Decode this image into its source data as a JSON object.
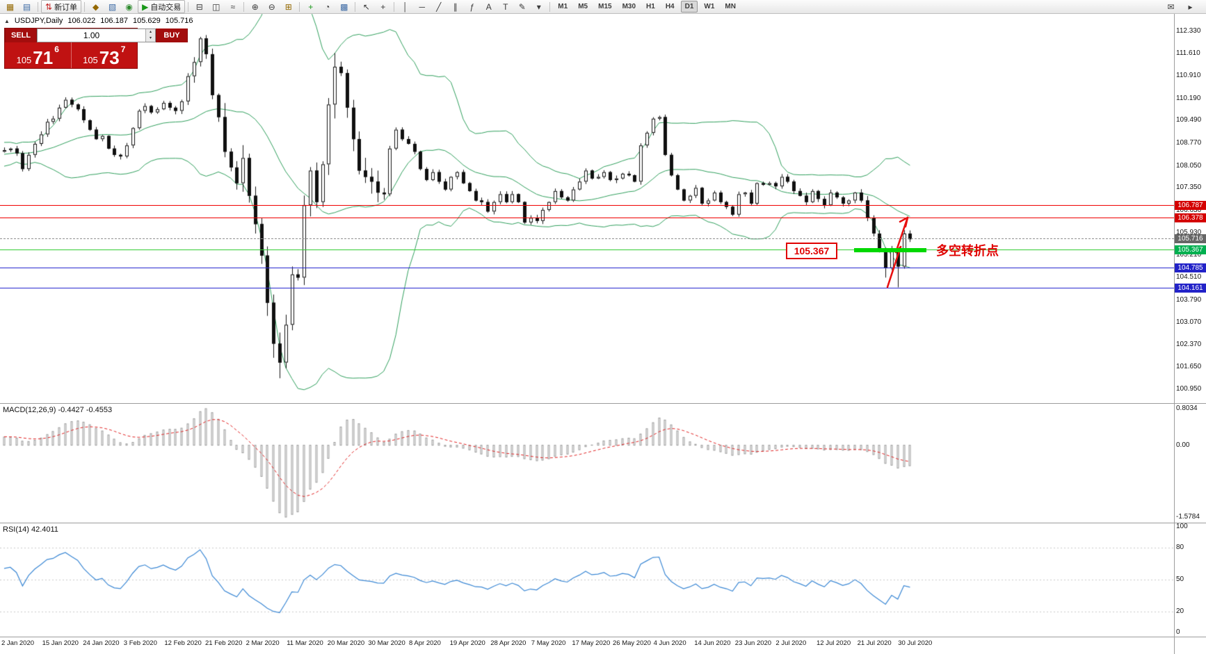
{
  "toolbar": {
    "items": [
      {
        "name": "new-chart-icon",
        "glyph": "▦",
        "color": "#946800"
      },
      {
        "name": "chart-profiles-icon",
        "glyph": "▤",
        "color": "#3f6ca6"
      },
      {
        "sep": true
      },
      {
        "name": "new-order-button",
        "label": "新订单",
        "glyph": "⇅",
        "color": "#c22020",
        "icon_name": "new-order-icon"
      },
      {
        "sep": true
      },
      {
        "name": "expert-advisors-icon",
        "glyph": "◆",
        "color": "#946800"
      },
      {
        "name": "chart-window-icon",
        "glyph": "▧",
        "color": "#3f6ca6"
      },
      {
        "name": "market-watch-icon",
        "glyph": "◉",
        "color": "#2e8b2e"
      },
      {
        "name": "autotrading-button",
        "label": "自动交易",
        "glyph": "▶",
        "color": "#189818",
        "icon_name": "autotrading-icon"
      },
      {
        "sep": true
      },
      {
        "name": "bar-chart-icon",
        "glyph": "⊟"
      },
      {
        "name": "candlestick-chart-icon",
        "glyph": "◫"
      },
      {
        "name": "line-chart-icon",
        "glyph": "≈"
      },
      {
        "sep": true
      },
      {
        "name": "zoom-in-icon",
        "glyph": "⊕"
      },
      {
        "name": "zoom-out-icon",
        "glyph": "⊖"
      },
      {
        "name": "tile-windows-icon",
        "glyph": "⊞",
        "color": "#946800"
      },
      {
        "sep": true
      },
      {
        "name": "indicators-icon",
        "glyph": "+",
        "color": "#189818"
      },
      {
        "name": "periods-icon",
        "glyph": "◔"
      },
      {
        "name": "templates-icon",
        "glyph": "▩",
        "color": "#3f6ca6"
      },
      {
        "sep": true
      },
      {
        "name": "cursor-icon",
        "glyph": "↖"
      },
      {
        "name": "crosshair-icon",
        "glyph": "+"
      },
      {
        "sep": true
      },
      {
        "name": "vertical-line-icon",
        "glyph": "│"
      },
      {
        "name": "horizontal-line-icon",
        "glyph": "─"
      },
      {
        "name": "trendline-icon",
        "glyph": "╱"
      },
      {
        "name": "channel-icon",
        "glyph": "∥"
      },
      {
        "name": "fibonacci-icon",
        "glyph": "ƒ"
      },
      {
        "name": "text-icon",
        "glyph": "A"
      },
      {
        "name": "label-icon",
        "glyph": "T"
      },
      {
        "name": "shapes-icon",
        "glyph": "✎"
      },
      {
        "name": "shapes-dropdown-icon",
        "glyph": "▾"
      },
      {
        "sep": true
      }
    ],
    "timeframes": [
      "M1",
      "M5",
      "M15",
      "M30",
      "H1",
      "H4",
      "D1",
      "W1",
      "MN"
    ],
    "active_timeframe": "D1",
    "right_items": [
      {
        "name": "mail-icon",
        "glyph": "✉"
      },
      {
        "name": "scroll-arrow-icon",
        "glyph": "▸"
      }
    ]
  },
  "symbol_header": {
    "expander": "▲",
    "symbol": "USDJPY,Daily",
    "open": "106.022",
    "high": "106.187",
    "low": "105.629",
    "close": "105.716"
  },
  "trade_widget": {
    "sell_label": "SELL",
    "buy_label": "BUY",
    "volume": "1.00",
    "spin_up": "▴",
    "spin_down": "▾",
    "sell_price_prefix": "105",
    "sell_price_big": "71",
    "sell_price_sup": "6",
    "buy_price_prefix": "105",
    "buy_price_big": "73",
    "buy_price_sup": "7"
  },
  "price_axis": {
    "labels": [
      "112.330",
      "111.610",
      "110.910",
      "110.190",
      "109.490",
      "108.770",
      "108.050",
      "107.350",
      "106.630",
      "105.930",
      "105.210",
      "104.510",
      "103.790",
      "103.070",
      "102.370",
      "101.650",
      "100.950"
    ]
  },
  "levels": [
    {
      "label": "106.787",
      "value": 106.787,
      "line_color": "#f00000",
      "tag_color": "#d40000",
      "style": "solid"
    },
    {
      "label": "106.378",
      "value": 106.378,
      "line_color": "#f00000",
      "tag_color": "#d40000",
      "style": "solid"
    },
    {
      "label": "105.716",
      "value": 105.716,
      "line_color": "#909090",
      "tag_color": "#666666",
      "style": "dashed"
    },
    {
      "label": "105.367",
      "value": 105.367,
      "line_color": "#33cc33",
      "tag_color": "#00b050",
      "style": "solid"
    },
    {
      "label": "104.785",
      "value": 104.785,
      "line_color": "#2a2ad0",
      "tag_color": "#2222c8",
      "style": "solid"
    },
    {
      "label": "104.161",
      "value": 104.161,
      "line_color": "#2a2ad0",
      "tag_color": "#2222c8",
      "style": "solid"
    }
  ],
  "macd": {
    "title": "MACD(12,26,9)",
    "values": "-0.4427 -0.4553",
    "max": 0.8034,
    "min": -1.5784,
    "axis_labels": [
      {
        "text": "0.8034",
        "value": 0.8034
      },
      {
        "text": "0.00",
        "value": 0
      },
      {
        "text": "-1.5784",
        "value": -1.5784
      }
    ]
  },
  "rsi": {
    "title": "RSI(14)",
    "value": "42.4011",
    "levels": [
      80,
      50,
      20
    ],
    "axis_labels": [
      {
        "text": "100",
        "value": 100
      },
      {
        "text": "80",
        "value": 80
      },
      {
        "text": "50",
        "value": 50
      },
      {
        "text": "20",
        "value": 20
      },
      {
        "text": "0",
        "value": 0
      }
    ]
  },
  "annotations": {
    "price_box_text": "105.367",
    "turning_point_text": "多空转折点",
    "turning_point_level": 105.367,
    "arrow_color": "#e81010",
    "thick_line_color": "#00d800"
  },
  "date_axis": [
    "2 Jan 2020",
    "15 Jan 2020",
    "24 Jan 2020",
    "3 Feb 2020",
    "12 Feb 2020",
    "21 Feb 2020",
    "2 Mar 2020",
    "11 Mar 2020",
    "20 Mar 2020",
    "30 Mar 2020",
    "8 Apr 2020",
    "19 Apr 2020",
    "28 Apr 2020",
    "7 May 2020",
    "17 May 2020",
    "26 May 2020",
    "4 Jun 2020",
    "14 Jun 2020",
    "23 Jun 2020",
    "2 Jul 2020",
    "12 Jul 2020",
    "21 Jul 2020",
    "30 Jul 2020"
  ],
  "chart_data": {
    "type": "candlestick",
    "symbol": "USDJPY",
    "timeframe": "Daily",
    "ylim": [
      100.51,
      112.88
    ],
    "bollinger": {
      "period": 20,
      "deviation": 2
    },
    "indicators": [
      "Bollinger Bands(20,2)",
      "MACD(12,26,9)",
      "RSI(14)"
    ],
    "pre_closes": [
      107.9,
      108.1,
      108.0,
      108.2,
      108.3,
      108.1,
      108.4,
      108.3,
      108.5,
      108.4,
      108.6,
      108.5,
      108.4,
      108.6,
      108.5,
      108.7,
      108.6,
      108.5,
      108.6,
      108.5
    ],
    "closes": [
      108.55,
      108.6,
      108.45,
      107.95,
      108.4,
      108.75,
      109.05,
      109.45,
      109.55,
      109.9,
      110.15,
      110.0,
      109.85,
      109.5,
      109.2,
      108.9,
      109.0,
      108.6,
      108.4,
      108.35,
      108.7,
      109.25,
      109.8,
      109.95,
      109.75,
      109.85,
      110.05,
      109.9,
      109.8,
      110.1,
      110.9,
      111.35,
      112.1,
      111.6,
      110.3,
      109.6,
      108.5,
      108.0,
      107.5,
      108.3,
      107.1,
      106.2,
      105.2,
      103.7,
      102.4,
      101.8,
      103.0,
      104.6,
      104.5,
      106.8,
      107.9,
      106.9,
      108.1,
      110.0,
      111.2,
      111.0,
      109.9,
      108.9,
      107.9,
      107.7,
      107.55,
      107.2,
      107.15,
      108.6,
      109.2,
      108.9,
      108.75,
      108.5,
      107.95,
      107.6,
      107.85,
      107.55,
      107.3,
      107.7,
      107.85,
      107.5,
      107.25,
      106.95,
      106.9,
      106.6,
      106.9,
      107.15,
      106.9,
      107.15,
      106.9,
      106.25,
      106.4,
      106.3,
      106.65,
      106.9,
      107.25,
      107.05,
      106.95,
      107.3,
      107.55,
      107.9,
      107.65,
      107.7,
      107.85,
      107.6,
      107.65,
      107.8,
      107.75,
      107.55,
      108.7,
      109.1,
      109.55,
      109.6,
      108.4,
      107.75,
      107.3,
      106.95,
      107.1,
      107.35,
      106.85,
      106.95,
      107.2,
      106.9,
      106.75,
      106.5,
      107.15,
      107.2,
      106.85,
      107.5,
      107.45,
      107.5,
      107.4,
      107.7,
      107.55,
      107.25,
      107.1,
      106.9,
      107.25,
      107.0,
      106.8,
      107.2,
      107.05,
      106.85,
      106.95,
      107.2,
      106.95,
      106.4,
      105.9,
      105.4,
      104.8,
      105.35,
      104.85,
      105.9,
      105.72
    ],
    "low_overrides": {
      "44": 101.95,
      "45": 101.3,
      "46": 102.3,
      "144": 104.5,
      "146": 104.19,
      "148": 105.63
    }
  }
}
